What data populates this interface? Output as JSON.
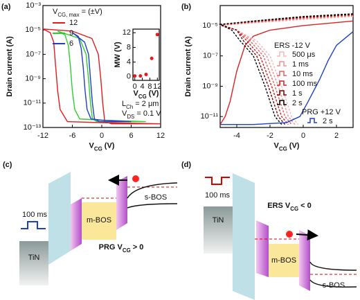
{
  "chart_data": [
    {
      "type": "line",
      "panel_label": "(a)",
      "log_y": true,
      "x_label": [
        "V",
        "CG",
        " (V)"
      ],
      "y_label": "Drain current (A)",
      "xlim": [
        -12,
        12
      ],
      "xticks": [
        -12,
        -6,
        0,
        6,
        12
      ],
      "ylim": [
        1e-13,
        0.001
      ],
      "yticks": [
        {
          "value": 1e-13,
          "label": "10⁻¹³"
        },
        {
          "value": 1e-11,
          "label": "10⁻¹¹"
        },
        {
          "value": 1e-09,
          "label": "10⁻⁹"
        },
        {
          "value": 1e-07,
          "label": "10⁻⁷"
        },
        {
          "value": 1e-05,
          "label": "10⁻⁵"
        },
        {
          "value": 0.001,
          "label": "10⁻³"
        }
      ],
      "legend_title": [
        "V",
        "CG, max",
        " = (±V)"
      ],
      "annotations": [
        [
          "L",
          "Ch",
          " = 2 μm"
        ],
        [
          "V",
          "DS",
          " = 0.1 V"
        ]
      ],
      "series": [
        {
          "name": "12",
          "color": "#e41a1c",
          "x": [
            -12,
            -10.5,
            -9.8,
            -9.4,
            -9,
            -8.5,
            -7,
            0,
            12,
            2,
            0.6,
            0.2,
            -0.2,
            -0.7,
            -2,
            -6,
            -12
          ],
          "values": [
            1.2e-05,
            6e-06,
            1e-06,
            1e-08,
            1e-10,
            3e-12,
            3e-13,
            2.5e-13,
            2e-13,
            2e-13,
            3e-13,
            1e-11,
            1e-09,
            1e-07,
            2e-06,
            8e-06,
            1.2e-05
          ]
        },
        {
          "name": "9",
          "color": "#2ecc2e",
          "x": [
            -9,
            -7.5,
            -6.8,
            -6.4,
            -6,
            -5.5,
            -4.5,
            0,
            9,
            -1,
            -1.9,
            -2.3,
            -2.7,
            -3.2,
            -4.5,
            -9
          ],
          "values": [
            8e-06,
            4e-06,
            5e-07,
            1e-08,
            1e-10,
            3e-12,
            5e-13,
            4e-13,
            3e-13,
            3e-13,
            5e-13,
            1e-11,
            1e-09,
            1e-07,
            2e-06,
            8e-06
          ]
        },
        {
          "name": "6",
          "color": "#1c3fc4",
          "x": [
            -6,
            -4.8,
            -4.2,
            -3.8,
            -3.4,
            -3,
            -2.2,
            0,
            6,
            -0.5,
            -1.5,
            -1.9,
            -2.3,
            -2.7,
            -3.5,
            -6
          ],
          "values": [
            6e-06,
            3e-06,
            3e-07,
            1e-08,
            1e-10,
            3e-12,
            5e-13,
            4e-13,
            3e-13,
            3e-13,
            5e-13,
            1e-11,
            1e-09,
            1e-07,
            1e-06,
            6e-06
          ]
        }
      ]
    },
    {
      "type": "scatter",
      "x_label": [
        "V",
        "CG",
        " (V)"
      ],
      "y_label": "MW (V)",
      "xlim": [
        -1,
        13
      ],
      "xticks": [
        0,
        4,
        8,
        12
      ],
      "ylim": [
        -1,
        13
      ],
      "yticks": [
        0,
        4,
        8,
        12
      ],
      "series": [
        {
          "color": "#e41a1c",
          "x": [
            0,
            3,
            6,
            9,
            12
          ],
          "values": [
            0.2,
            0.2,
            0.6,
            5,
            11.5
          ]
        }
      ]
    },
    {
      "type": "line",
      "panel_label": "(b)",
      "log_y": true,
      "x_label": [
        "V",
        "CG",
        " (V)"
      ],
      "y_label": "Drain current (A)",
      "xlim": [
        -5,
        3
      ],
      "xticks": [
        -4,
        -2,
        0,
        2
      ],
      "ylim": [
        1.9e-12,
        0.00021
      ],
      "yticks": [
        {
          "value": 1e-11,
          "label": "10⁻¹¹"
        },
        {
          "value": 1e-09,
          "label": "10⁻⁹"
        },
        {
          "value": 1e-07,
          "label": "10⁻⁷"
        },
        {
          "value": 1e-05,
          "label": "10⁻⁵"
        }
      ],
      "legend_headings": [
        "ERS -12 V",
        "PRG +12 V"
      ],
      "series": [
        {
          "color": "#e02020",
          "style": "solid",
          "x": [
            -5,
            -4.7,
            -4.4,
            -4,
            -3.5,
            -3,
            -2,
            0,
            3
          ],
          "values": [
            3e-12,
            1e-11,
            1e-10,
            1e-08,
            5e-07,
            2e-06,
            5e-06,
            1e-05,
            2e-05
          ]
        },
        {
          "name": "500 μs",
          "color": "#f5b8b8",
          "style": "dashed",
          "x": [
            3,
            0,
            -3,
            -5,
            -4,
            -2.8,
            -2.0,
            -1.3,
            -0.7,
            -0.3
          ],
          "values": [
            4e-05,
            2.5e-05,
            1.5e-05,
            1e-05,
            5e-06,
            1e-06,
            1e-07,
            1e-09,
            1e-11,
            3e-12
          ]
        },
        {
          "name": "1 ms",
          "color": "#ef9292",
          "style": "dashed",
          "x": [
            3,
            0,
            -3,
            -5,
            -4,
            -3.0,
            -2.2,
            -1.5,
            -0.9,
            -0.5
          ],
          "values": [
            4.4e-05,
            2.8e-05,
            1.6e-05,
            1.05e-05,
            5e-06,
            1e-06,
            1e-07,
            1e-09,
            1e-11,
            3e-12
          ]
        },
        {
          "name": "10 ms",
          "color": "#e06262",
          "style": "dashed",
          "x": [
            3,
            0,
            -3,
            -5,
            -4,
            -3.2,
            -2.4,
            -1.7,
            -1.1,
            -0.7
          ],
          "values": [
            4.8e-05,
            3.1e-05,
            1.7e-05,
            1.1e-05,
            5e-06,
            1e-06,
            1e-07,
            1e-09,
            1e-11,
            3e-12
          ]
        },
        {
          "name": "100 ms",
          "color": "#cc2020",
          "style": "dashed",
          "x": [
            3,
            0,
            -3,
            -5,
            -4,
            -3.4,
            -2.6,
            -1.9,
            -1.3,
            -0.9
          ],
          "values": [
            5.2e-05,
            3.4e-05,
            1.8e-05,
            1.15e-05,
            5e-06,
            1e-06,
            1e-07,
            1e-09,
            1e-11,
            3e-12
          ]
        },
        {
          "name": "1 s",
          "color": "#7a0000",
          "style": "dashed",
          "x": [
            3,
            0,
            -3,
            -5,
            -4,
            -3.6,
            -2.8,
            -2.1,
            -1.5,
            -1.1
          ],
          "values": [
            5.6e-05,
            3.7e-05,
            1.9e-05,
            1.2e-05,
            5e-06,
            1e-06,
            1e-07,
            1e-09,
            1e-11,
            3e-12
          ]
        },
        {
          "name": "2 s",
          "color": "#000000",
          "style": "dashed",
          "x": [
            3,
            0,
            -3,
            -5,
            -4.3,
            -3.8,
            -3.0,
            -2.3,
            -1.7,
            -1.3
          ],
          "values": [
            6e-05,
            4e-05,
            2e-05,
            1.2e-05,
            5e-06,
            1e-06,
            1e-07,
            1e-09,
            1e-11,
            3e-12
          ]
        },
        {
          "name": "2 s",
          "color": "#1c3fc4",
          "style": "solid",
          "x": [
            -5,
            -3,
            -1,
            -0.2,
            0.3,
            1,
            1.5,
            2,
            3
          ],
          "values": [
            3e-12,
            3e-12,
            4e-12,
            1e-11,
            1e-10,
            3e-09,
            5e-08,
            5e-07,
            4e-06
          ]
        }
      ]
    }
  ],
  "diagrams": [
    {
      "panel_label": "(c)",
      "pulse_label": "100 ms",
      "electrode": "TiN",
      "middle_layer": "m-BOS",
      "channel": "s-BOS",
      "caption": [
        "PRG V",
        "CG",
        " > 0"
      ]
    },
    {
      "panel_label": "(d)",
      "pulse_label": "100 ms",
      "electrode": "TiN",
      "middle_layer": "m-BOS",
      "channel": "s-BOS",
      "caption": [
        "ERS V",
        "CG",
        " < 0"
      ]
    }
  ]
}
